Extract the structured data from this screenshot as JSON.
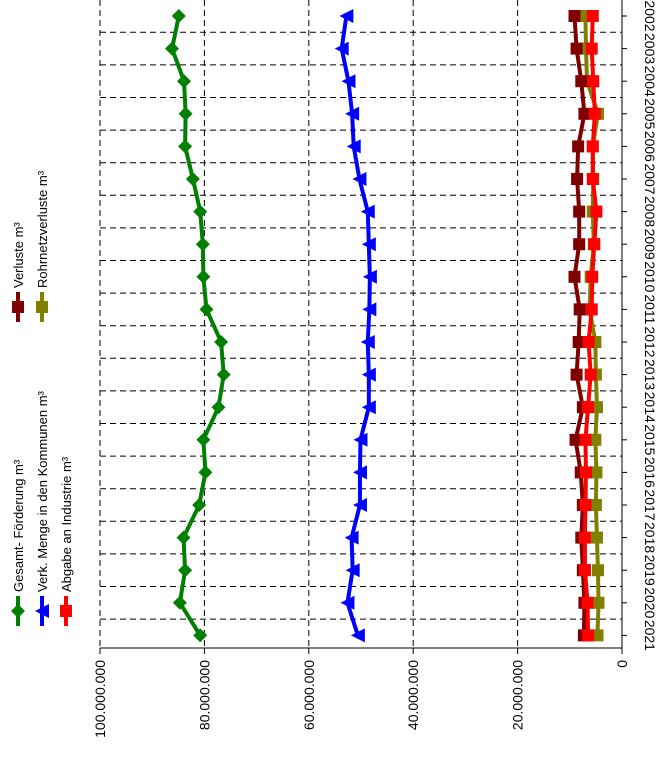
{
  "chart_data": {
    "type": "line",
    "orientation": "rotated-90-clockwise",
    "title": "",
    "xlabel": "",
    "ylabel": "",
    "categories": [
      "2002",
      "2003",
      "2004",
      "2005",
      "2006",
      "2007",
      "2008",
      "2009",
      "2010",
      "2011",
      "2012",
      "2013",
      "2014",
      "2015",
      "2016",
      "2017",
      "2018",
      "2019",
      "2020",
      "2021"
    ],
    "ylim": [
      0,
      100000000
    ],
    "y_ticks": [
      "0",
      "20.000.000",
      "40.000.000",
      "60.000.000",
      "80.000.000",
      "100.000.000"
    ],
    "y_tick_values": [
      0,
      20000000,
      40000000,
      60000000,
      80000000,
      100000000
    ],
    "grid": true,
    "legend_position": "top-left",
    "series": [
      {
        "name": "Gesamt- Förderung m³",
        "color": "#008000",
        "marker": "diamond",
        "values": [
          84900000,
          86200000,
          83900000,
          83600000,
          83700000,
          82200000,
          80800000,
          80300000,
          80200000,
          79600000,
          76800000,
          76300000,
          77300000,
          80200000,
          79800000,
          81000000,
          84000000,
          83700000,
          84700000,
          80800000
        ]
      },
      {
        "name": "Verk. Menge in den Kommunen m³",
        "color": "#0000ff",
        "marker": "triangle",
        "values": [
          52800000,
          53700000,
          52400000,
          51700000,
          51400000,
          50300000,
          48700000,
          48500000,
          48300000,
          48400000,
          48700000,
          48500000,
          48500000,
          50100000,
          50200000,
          50200000,
          51800000,
          51600000,
          52600000,
          50600000
        ]
      },
      {
        "name": "Abgabe an Industrie m³",
        "color": "#ff0000",
        "marker": "square",
        "values": [
          5600000,
          5800000,
          5500000,
          5200000,
          5600000,
          5600000,
          4900000,
          5300000,
          5700000,
          5800000,
          6400000,
          6000000,
          6500000,
          7000000,
          6900000,
          7000000,
          7100000,
          7100000,
          6600000,
          6500000
        ]
      },
      {
        "name": "Verluste m³",
        "color": "#800000",
        "marker": "square",
        "values": [
          9100000,
          8700000,
          7800000,
          7200000,
          8400000,
          8600000,
          8200000,
          8200000,
          9100000,
          8100000,
          8300000,
          8700000,
          7500000,
          8900000,
          7900000,
          7500000,
          7800000,
          7500000,
          7200000,
          7300000
        ]
      },
      {
        "name": "Rohrnetzverluste m³",
        "color": "#808000",
        "marker": "square",
        "values": [
          7000000,
          6900000,
          6700000,
          4600000,
          5600000,
          5500000,
          5600000,
          5400000,
          6000000,
          6200000,
          5100000,
          5000000,
          4800000,
          5100000,
          4900000,
          5000000,
          4800000,
          4600000,
          4500000,
          4700000
        ]
      }
    ]
  }
}
